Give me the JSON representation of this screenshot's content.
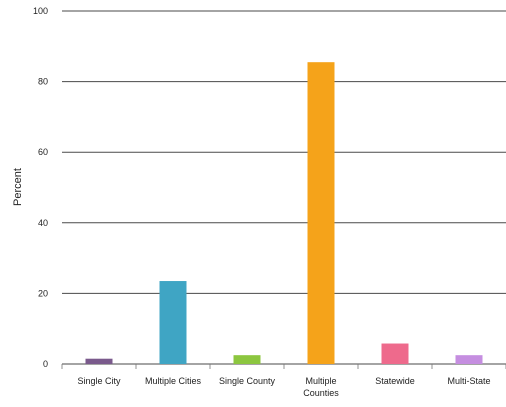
{
  "chart_data": {
    "type": "bar",
    "title": "",
    "xlabel": "",
    "ylabel": "Percent",
    "ylim": [
      0,
      100
    ],
    "yticks": [
      0,
      20,
      40,
      60,
      80,
      100
    ],
    "grid": true,
    "categories": [
      "Single City",
      "Multiple Cities",
      "Single County",
      "Multiple Counties",
      "Statewide",
      "Multi-State"
    ],
    "values": [
      1.5,
      23.5,
      2.5,
      85.5,
      5.8,
      2.5
    ],
    "colors": [
      "#7a5a8c",
      "#3fa5c4",
      "#8cc63f",
      "#f5a31a",
      "#ee6a8c",
      "#c58ee0"
    ]
  }
}
